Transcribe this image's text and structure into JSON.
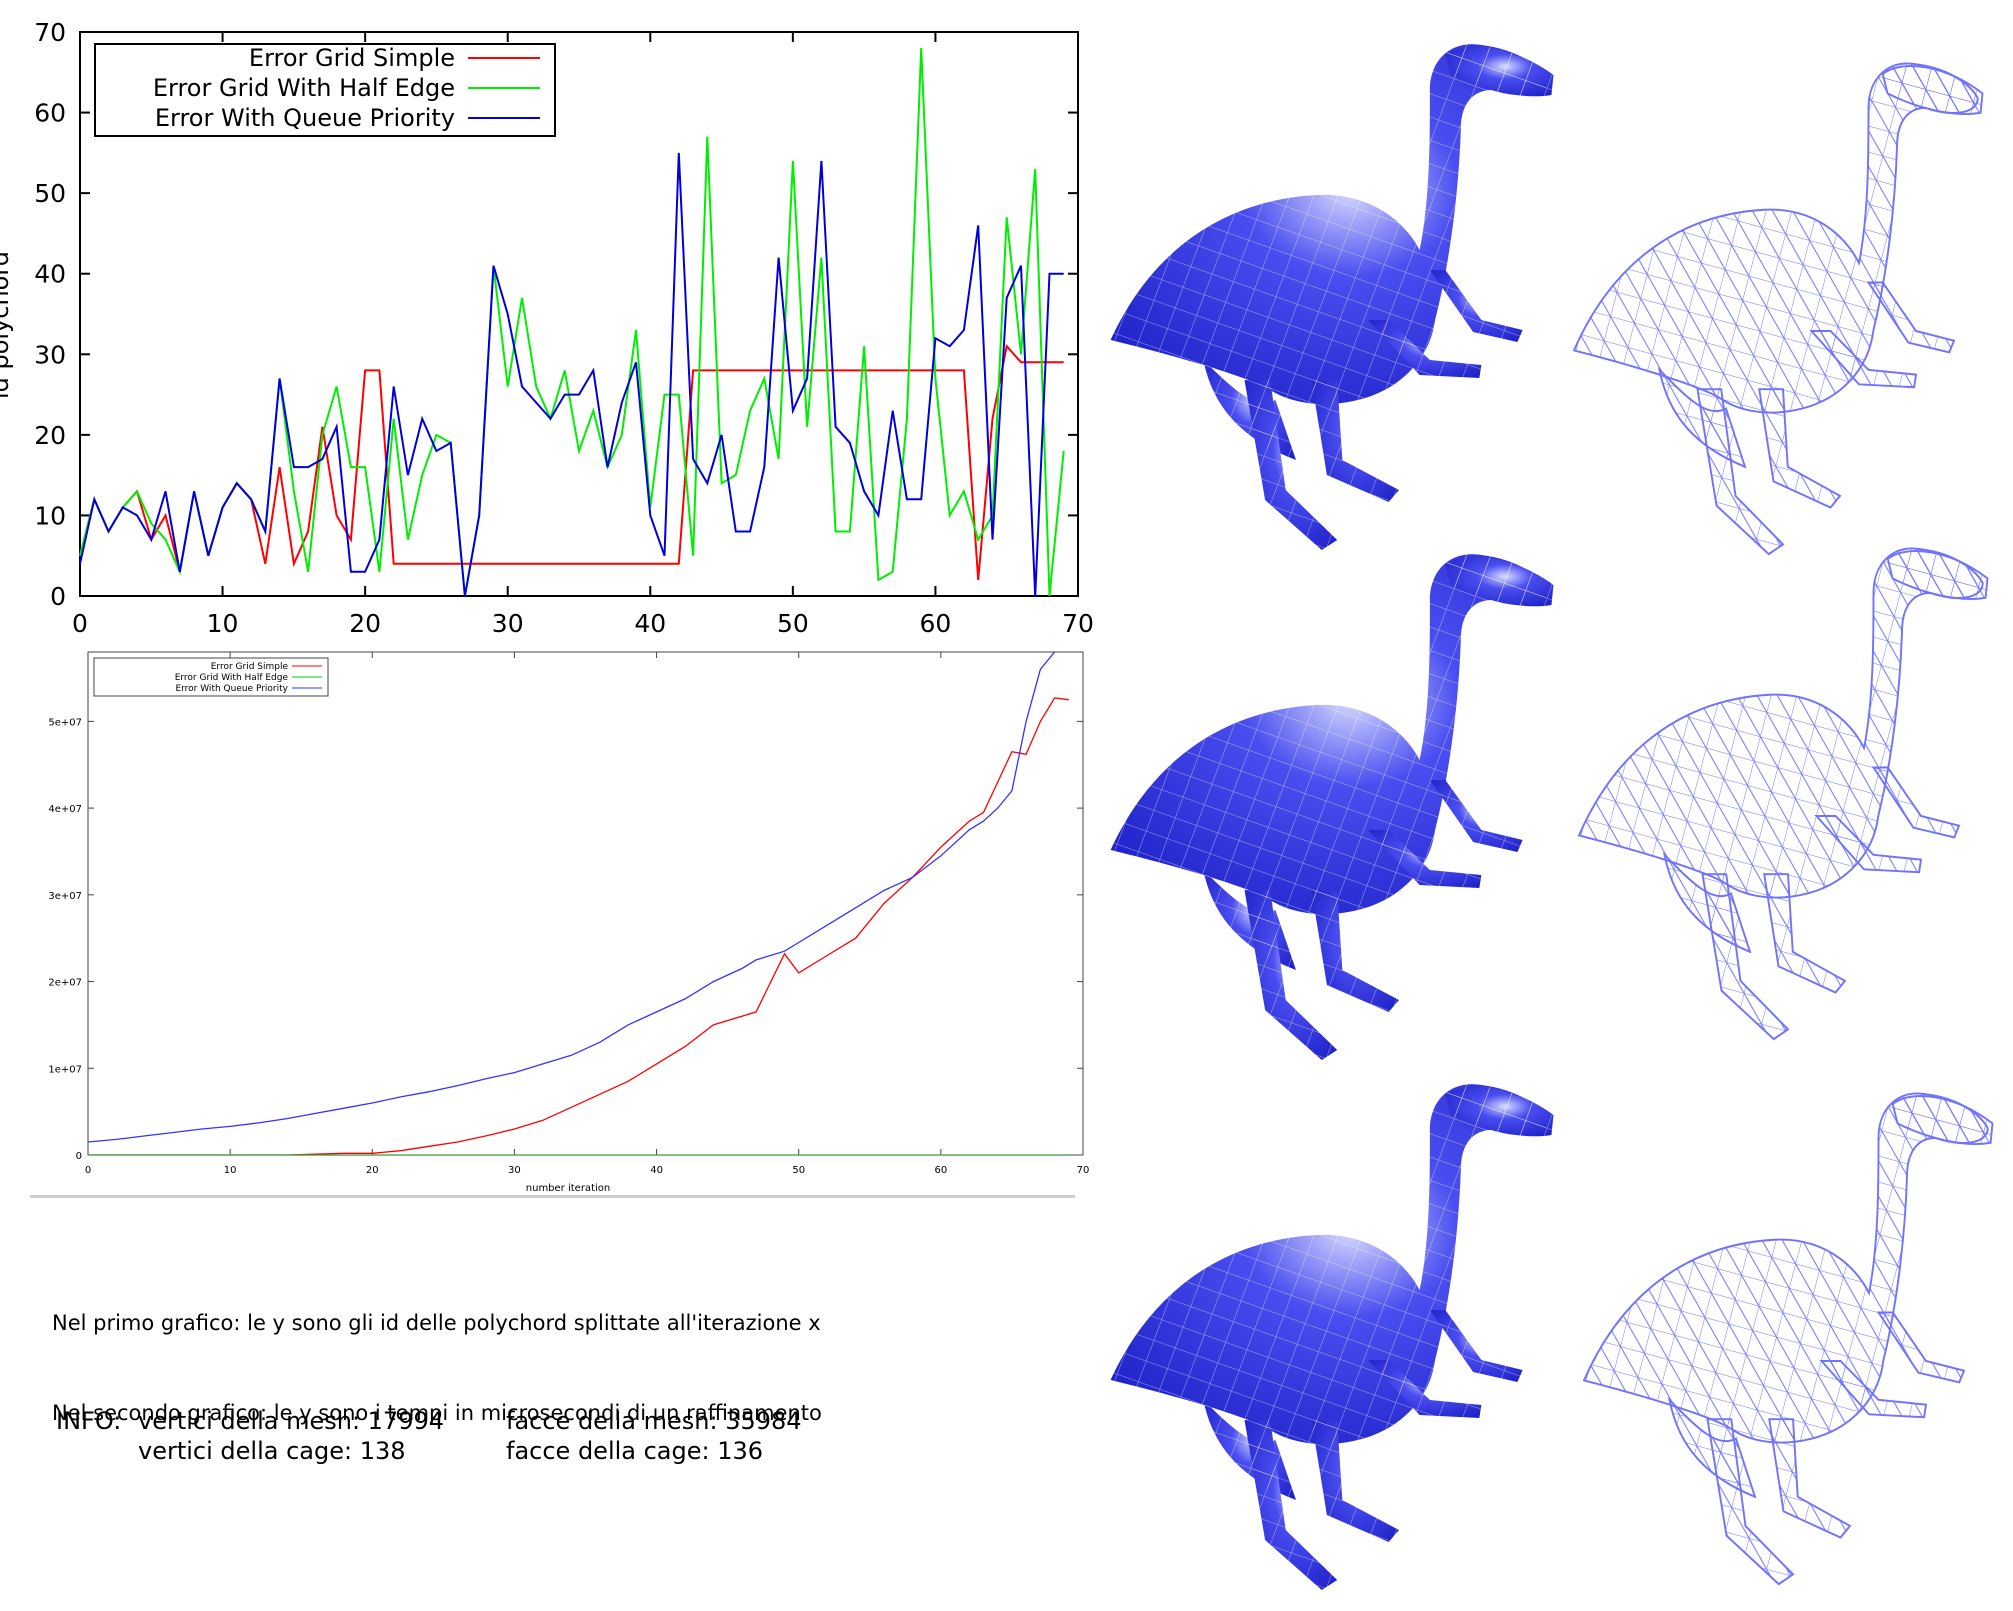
{
  "chart_data": [
    {
      "type": "line",
      "title": "",
      "xlabel": "",
      "ylabel": "id polychord",
      "xlim": [
        0,
        70
      ],
      "ylim": [
        0,
        70
      ],
      "xticks": [
        0,
        10,
        20,
        30,
        40,
        50,
        60,
        70
      ],
      "yticks": [
        0,
        10,
        20,
        30,
        40,
        50,
        60,
        70
      ],
      "legend_position": "top-left",
      "x": [
        0,
        1,
        2,
        3,
        4,
        5,
        6,
        7,
        8,
        9,
        10,
        11,
        12,
        13,
        14,
        15,
        16,
        17,
        18,
        19,
        20,
        21,
        22,
        23,
        24,
        25,
        26,
        27,
        28,
        29,
        30,
        31,
        32,
        33,
        34,
        35,
        36,
        37,
        38,
        39,
        40,
        41,
        42,
        43,
        44,
        45,
        46,
        47,
        48,
        49,
        50,
        51,
        52,
        53,
        54,
        55,
        56,
        57,
        58,
        59,
        60,
        61,
        62,
        63,
        64,
        65,
        66,
        67,
        68,
        69
      ],
      "series": [
        {
          "name": "Error Grid Simple",
          "color": "#ff0000",
          "values": [
            5,
            12,
            8,
            11,
            13,
            7,
            10,
            3,
            13,
            5,
            11,
            14,
            12,
            4,
            16,
            4,
            8,
            21,
            10,
            7,
            28,
            28,
            4,
            4,
            4,
            4,
            4,
            4,
            4,
            4,
            4,
            4,
            4,
            4,
            4,
            4,
            4,
            4,
            4,
            4,
            4,
            4,
            4,
            28,
            28,
            28,
            28,
            28,
            28,
            28,
            28,
            28,
            28,
            28,
            28,
            28,
            28,
            28,
            28,
            28,
            28,
            28,
            28,
            2,
            22,
            31,
            29,
            29,
            29,
            29
          ]
        },
        {
          "name": "Error Grid With Half Edge",
          "color": "#00ee00",
          "values": [
            5,
            12,
            8,
            11,
            13,
            9,
            7,
            3,
            13,
            5,
            11,
            14,
            12,
            8,
            27,
            13,
            3,
            20,
            26,
            16,
            16,
            3,
            22,
            7,
            15,
            20,
            19,
            0,
            10,
            41,
            26,
            37,
            26,
            22,
            28,
            18,
            23,
            16,
            20,
            33,
            11,
            25,
            25,
            5,
            57,
            14,
            15,
            23,
            27,
            17,
            54,
            21,
            42,
            8,
            8,
            31,
            2,
            3,
            22,
            68,
            27,
            10,
            13,
            7,
            10,
            47,
            30,
            53,
            0,
            18
          ]
        },
        {
          "name": "Error With Queue Priority",
          "color": "#0000dd",
          "values": [
            4,
            12,
            8,
            11,
            10,
            7,
            13,
            3,
            13,
            5,
            11,
            14,
            12,
            8,
            27,
            16,
            16,
            17,
            21,
            3,
            3,
            7,
            26,
            15,
            22,
            18,
            19,
            0,
            10,
            41,
            35,
            26,
            24,
            22,
            25,
            25,
            28,
            16,
            24,
            29,
            10,
            5,
            55,
            17,
            14,
            20,
            8,
            8,
            16,
            42,
            23,
            27,
            54,
            21,
            19,
            13,
            10,
            23,
            12,
            12,
            32,
            31,
            33,
            46,
            7,
            37,
            41,
            0,
            40,
            40
          ]
        }
      ]
    },
    {
      "type": "line",
      "title": "",
      "xlabel": "number iteration",
      "ylabel": "",
      "xlim": [
        0,
        70
      ],
      "ylim": [
        0,
        58000000
      ],
      "xticks": [
        "0",
        "10",
        "20",
        "30",
        "40",
        "50",
        "60",
        "70"
      ],
      "yticks": [
        "0",
        "1e+07",
        "2e+07",
        "3e+07",
        "4e+07",
        "5e+07"
      ],
      "ytick_values": [
        0,
        10000000,
        20000000,
        30000000,
        40000000,
        50000000
      ],
      "legend_position": "top-left",
      "x": [
        0,
        2,
        4,
        6,
        8,
        10,
        12,
        14,
        16,
        18,
        20,
        22,
        24,
        26,
        28,
        30,
        32,
        34,
        36,
        38,
        40,
        42,
        44,
        46,
        47,
        49,
        50,
        52,
        54,
        56,
        58,
        60,
        62,
        63,
        64,
        65,
        66,
        67,
        68,
        69
      ],
      "series": [
        {
          "name": "Error Grid Simple",
          "color": "#ff0000",
          "values": [
            0,
            0,
            0,
            0,
            0,
            0,
            0,
            0,
            100000,
            200000,
            200000,
            500000,
            1000000,
            1500000,
            2200000,
            3000000,
            4000000,
            5500000,
            7000000,
            8500000,
            10500000,
            12500000,
            15000000,
            16000000,
            16500000,
            23200000,
            21000000,
            23000000,
            25000000,
            29000000,
            32000000,
            35500000,
            38500000,
            39500000,
            43000000,
            46500000,
            46200000,
            50000000,
            52700000,
            52500000
          ]
        },
        {
          "name": "Error Grid With Half Edge",
          "color": "#00cc00",
          "values": [
            0,
            0,
            0,
            0,
            0,
            0,
            0,
            0,
            0,
            0,
            0,
            0,
            0,
            0,
            0,
            0,
            0,
            0,
            0,
            0,
            0,
            0,
            0,
            0,
            0,
            0,
            0,
            0,
            0,
            0,
            0,
            0,
            0,
            0,
            0,
            0,
            0,
            0,
            0,
            0
          ]
        },
        {
          "name": "Error With Queue Priority",
          "color": "#3333ff",
          "values": [
            1500000,
            1800000,
            2200000,
            2600000,
            3000000,
            3300000,
            3700000,
            4200000,
            4800000,
            5400000,
            6000000,
            6700000,
            7300000,
            8000000,
            8800000,
            9500000,
            10500000,
            11500000,
            13000000,
            15000000,
            16500000,
            18000000,
            20000000,
            21500000,
            22500000,
            23500000,
            24500000,
            26500000,
            28500000,
            30500000,
            32000000,
            34500000,
            37500000,
            38500000,
            40000000,
            42000000,
            50000000,
            56000000,
            58000000,
            60000000
          ]
        }
      ]
    }
  ],
  "notes": {
    "line1": "Nel primo grafico: le y sono gli id delle polychord splittate all'iterazione x",
    "line2": "Nel secondo grafico: le y sono i tempi in microsecondi di un raffinamento"
  },
  "info": {
    "label": "INFO:",
    "mesh_vertices": "vertici della mesh: 17994",
    "mesh_faces": "facce della mesh: 35984",
    "cage_vertices": "vertici della cage: 138",
    "cage_faces": "facce della cage: 136"
  },
  "models": {
    "mesh_color": "#2b2ee0",
    "cage_color": "#6f73ff",
    "rows": 3
  }
}
